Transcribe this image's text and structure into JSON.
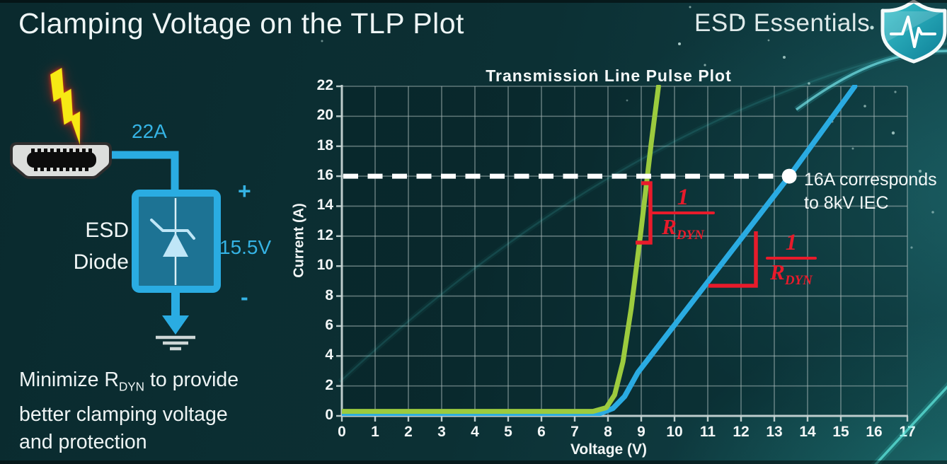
{
  "slide": {
    "title": "Clamping Voltage on the TLP Plot",
    "brand": "ESD Essentials"
  },
  "note": {
    "line1_pre": "Minimize R",
    "line1_sub": "DYN",
    "line1_post": " to provide",
    "line2": "better clamping voltage",
    "line3": "and protection"
  },
  "diagram": {
    "surge_current": "22A",
    "device_line1": "ESD",
    "device_line2": "Diode",
    "clamp_voltage": "15.5V",
    "polarity_plus": "+",
    "polarity_minus": "-",
    "accent_color": "#2aace2"
  },
  "chart_data": {
    "type": "line",
    "title": "Transmission Line Pulse Plot",
    "xlabel": "Voltage (V)",
    "ylabel": "Current (A)",
    "xlim": [
      0,
      17
    ],
    "ylim": [
      0,
      22
    ],
    "xticks": [
      0,
      1,
      2,
      3,
      4,
      5,
      6,
      7,
      8,
      9,
      10,
      11,
      12,
      13,
      14,
      15,
      16,
      17
    ],
    "yticks": [
      0,
      2,
      4,
      6,
      8,
      10,
      12,
      14,
      16,
      18,
      20,
      22
    ],
    "grid": true,
    "legend": "none",
    "series": [
      {
        "id": "high-rdyn-curve",
        "color": "#2aabe2",
        "points": [
          [
            0,
            0.16
          ],
          [
            7.75,
            0.16
          ],
          [
            8.15,
            0.5
          ],
          [
            8.5,
            1.3
          ],
          [
            8.9,
            2.9
          ],
          [
            13.45,
            16
          ],
          [
            15.42,
            22
          ]
        ]
      },
      {
        "id": "low-rdyn-curve",
        "color": "#9ccb3e",
        "points": [
          [
            0,
            0.3
          ],
          [
            7.55,
            0.3
          ],
          [
            7.95,
            0.55
          ],
          [
            8.2,
            1.4
          ],
          [
            8.45,
            3.6
          ],
          [
            8.7,
            7.2
          ],
          [
            9.0,
            12.5
          ],
          [
            9.3,
            18.2
          ],
          [
            9.52,
            22
          ]
        ]
      }
    ],
    "reference_line": {
      "current": 16,
      "style": "dashed",
      "color": "#ffffff"
    },
    "marker": {
      "x": 13.45,
      "y": 16,
      "label_line1": "16A corresponds",
      "label_line2": "to 8kV IEC"
    },
    "slope_label": {
      "numerator": "1",
      "denominator_base": "R",
      "denominator_sub": "DYN"
    },
    "slope_label_color": "#e81b2b"
  }
}
